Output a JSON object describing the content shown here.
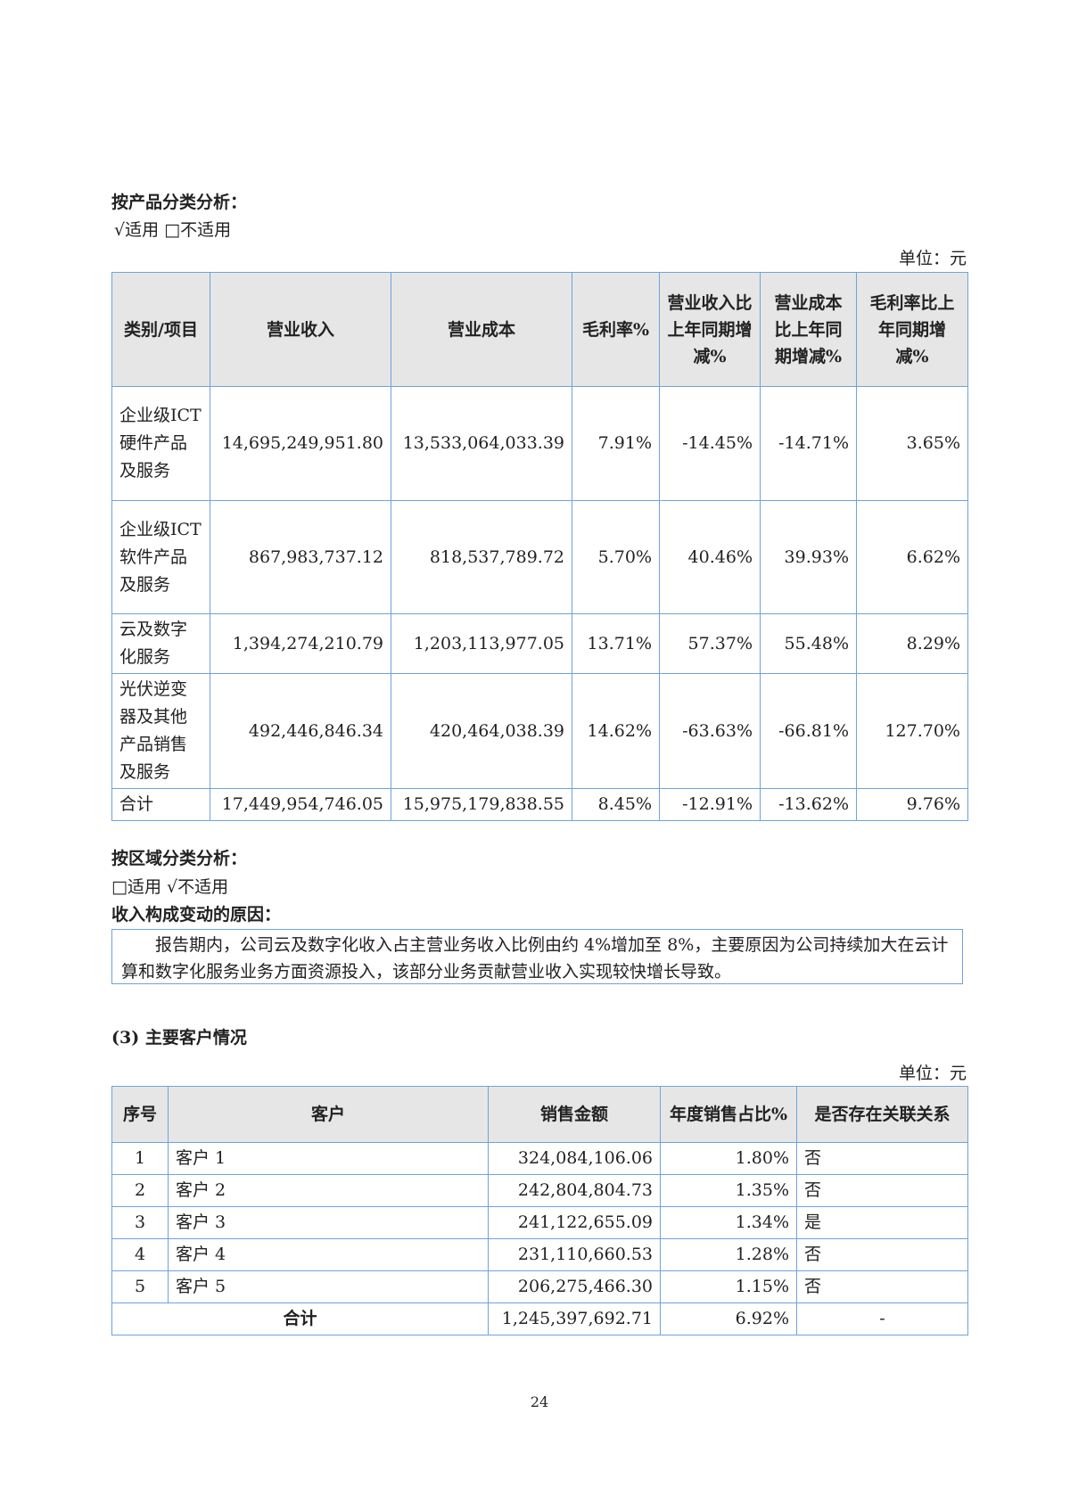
{
  "product_section": {
    "title": "按产品分类分析：",
    "applicability": "√适用 □不适用",
    "unit": "单位：元",
    "headers": [
      "类别/项目",
      "营业收入",
      "营业成本",
      "毛利率%",
      "营业收入比上年同期增减%",
      "营业成本比上年同期增减%",
      "毛利率比上年同期增减%"
    ],
    "rows": [
      [
        "企业级ICT硬件产品及服务",
        "14,695,249,951.80",
        "13,533,064,033.39",
        "7.91%",
        "-14.45%",
        "-14.71%",
        "3.65%"
      ],
      [
        "企业级ICT软件产品及服务",
        "867,983,737.12",
        "818,537,789.72",
        "5.70%",
        "40.46%",
        "39.93%",
        "6.62%"
      ],
      [
        "云及数字化服务",
        "1,394,274,210.79",
        "1,203,113,977.05",
        "13.71%",
        "57.37%",
        "55.48%",
        "8.29%"
      ],
      [
        "光伏逆变器及其他产品销售及服务",
        "492,446,846.34",
        "420,464,038.39",
        "14.62%",
        "-63.63%",
        "-66.81%",
        "127.70%"
      ],
      [
        "合计",
        "17,449,954,746.05",
        "15,975,179,838.55",
        "8.45%",
        "-12.91%",
        "-13.62%",
        "9.76%"
      ]
    ]
  },
  "region_section": {
    "title": "按区域分类分析：",
    "applicability": "□适用 √不适用"
  },
  "reason_section": {
    "title": "收入构成变动的原因：",
    "text": "报告期内，公司云及数字化收入占主营业务收入比例由约 4%增加至 8%，主要原因为公司持续加大在云计算和数字化服务业务方面资源投入，该部分业务贡献营业收入实现较快增长导致。"
  },
  "customer_section": {
    "title": "(3) 主要客户情况",
    "unit": "单位：元",
    "headers": [
      "序号",
      "客户",
      "销售金额",
      "年度销售占比%",
      "是否存在关联关系"
    ],
    "rows": [
      [
        "1",
        "客户 1",
        "324,084,106.06",
        "1.80%",
        "否"
      ],
      [
        "2",
        "客户 2",
        "242,804,804.73",
        "1.35%",
        "否"
      ],
      [
        "3",
        "客户 3",
        "241,122,655.09",
        "1.34%",
        "是"
      ],
      [
        "4",
        "客户 4",
        "231,110,660.53",
        "1.28%",
        "否"
      ],
      [
        "5",
        "客户 5",
        "206,275,466.30",
        "1.15%",
        "否"
      ]
    ],
    "total": {
      "label": "合计",
      "amount": "1,245,397,692.71",
      "ratio": "6.92%",
      "related": "-"
    }
  },
  "page_number": "24"
}
